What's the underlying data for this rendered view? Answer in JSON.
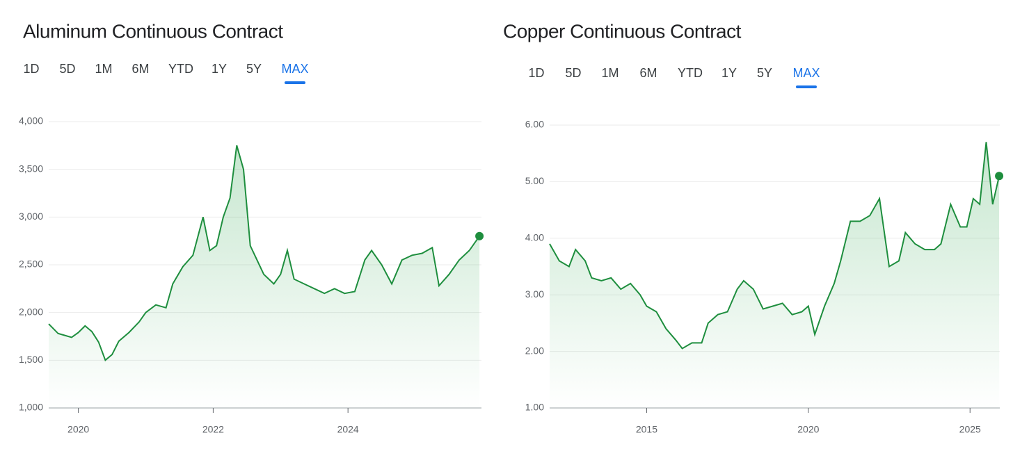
{
  "chart_data": [
    {
      "type": "line",
      "title": "Aluminum Continuous Contract",
      "range_options": [
        "1D",
        "5D",
        "1M",
        "6M",
        "YTD",
        "1Y",
        "5Y",
        "MAX"
      ],
      "selected_range": "MAX",
      "xlim": [
        2019.56,
        2025.98
      ],
      "xticks": [
        2020,
        2022,
        2024
      ],
      "ylim": [
        1000,
        4000
      ],
      "yticks": [
        {
          "value": 1000,
          "label": "1,000"
        },
        {
          "value": 1500,
          "label": "1,500"
        },
        {
          "value": 2000,
          "label": "2,000"
        },
        {
          "value": 2500,
          "label": "2,500"
        },
        {
          "value": 3000,
          "label": "3,000"
        },
        {
          "value": 3500,
          "label": "3,500"
        },
        {
          "value": 4000,
          "label": "4,000"
        }
      ],
      "grid": true,
      "series": [
        {
          "name": "Aluminum",
          "color": "#1e8e3e",
          "x": [
            2019.56,
            2019.7,
            2019.8,
            2019.9,
            2020.0,
            2020.1,
            2020.2,
            2020.3,
            2020.4,
            2020.5,
            2020.6,
            2020.75,
            2020.9,
            2021.0,
            2021.15,
            2021.3,
            2021.4,
            2021.55,
            2021.7,
            2021.85,
            2021.95,
            2022.05,
            2022.15,
            2022.25,
            2022.35,
            2022.45,
            2022.55,
            2022.65,
            2022.75,
            2022.9,
            2023.0,
            2023.1,
            2023.2,
            2023.35,
            2023.5,
            2023.65,
            2023.8,
            2023.95,
            2024.1,
            2024.25,
            2024.35,
            2024.5,
            2024.65,
            2024.8,
            2024.95,
            2025.1,
            2025.25,
            2025.35,
            2025.5,
            2025.65,
            2025.8,
            2025.95
          ],
          "values": [
            1880,
            1780,
            1760,
            1740,
            1790,
            1860,
            1800,
            1690,
            1500,
            1560,
            1700,
            1790,
            1900,
            2000,
            2080,
            2050,
            2300,
            2480,
            2600,
            3000,
            2650,
            2700,
            3000,
            3200,
            3750,
            3500,
            2700,
            2550,
            2400,
            2300,
            2400,
            2650,
            2350,
            2300,
            2250,
            2200,
            2250,
            2200,
            2220,
            2550,
            2650,
            2500,
            2300,
            2550,
            2600,
            2620,
            2680,
            2280,
            2400,
            2550,
            2650,
            2800
          ]
        }
      ]
    },
    {
      "type": "line",
      "title": "Copper Continuous Contract",
      "range_options": [
        "1D",
        "5D",
        "1M",
        "6M",
        "YTD",
        "1Y",
        "5Y",
        "MAX"
      ],
      "selected_range": "MAX",
      "xlim": [
        2012.0,
        2025.92
      ],
      "xticks": [
        2015,
        2020,
        2025
      ],
      "ylim": [
        1,
        6
      ],
      "yticks": [
        {
          "value": 1,
          "label": "1.00"
        },
        {
          "value": 2,
          "label": "2.00"
        },
        {
          "value": 3,
          "label": "3.00"
        },
        {
          "value": 4,
          "label": "4.00"
        },
        {
          "value": 5,
          "label": "5.00"
        },
        {
          "value": 6,
          "label": "6.00"
        }
      ],
      "grid": true,
      "series": [
        {
          "name": "Copper",
          "color": "#1e8e3e",
          "x": [
            2012.0,
            2012.3,
            2012.6,
            2012.8,
            2013.1,
            2013.3,
            2013.6,
            2013.9,
            2014.2,
            2014.5,
            2014.8,
            2015.0,
            2015.3,
            2015.6,
            2015.9,
            2016.1,
            2016.4,
            2016.7,
            2016.9,
            2017.2,
            2017.5,
            2017.8,
            2018.0,
            2018.3,
            2018.6,
            2018.9,
            2019.2,
            2019.5,
            2019.8,
            2020.0,
            2020.2,
            2020.5,
            2020.8,
            2021.0,
            2021.3,
            2021.6,
            2021.9,
            2022.2,
            2022.5,
            2022.8,
            2023.0,
            2023.3,
            2023.6,
            2023.9,
            2024.1,
            2024.4,
            2024.7,
            2024.9,
            2025.1,
            2025.3,
            2025.5,
            2025.7,
            2025.9
          ],
          "values": [
            3.9,
            3.6,
            3.5,
            3.8,
            3.6,
            3.3,
            3.25,
            3.3,
            3.1,
            3.2,
            3.0,
            2.8,
            2.7,
            2.4,
            2.2,
            2.05,
            2.15,
            2.15,
            2.5,
            2.65,
            2.7,
            3.1,
            3.25,
            3.1,
            2.75,
            2.8,
            2.85,
            2.65,
            2.7,
            2.8,
            2.3,
            2.8,
            3.2,
            3.6,
            4.3,
            4.3,
            4.4,
            4.7,
            3.5,
            3.6,
            4.1,
            3.9,
            3.8,
            3.8,
            3.9,
            4.6,
            4.2,
            4.2,
            4.7,
            4.6,
            5.7,
            4.6,
            5.1
          ]
        }
      ]
    }
  ]
}
